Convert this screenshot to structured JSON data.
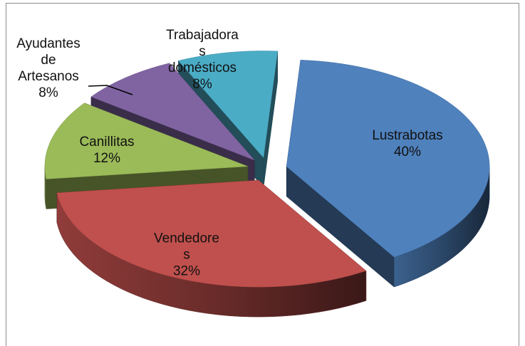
{
  "chart_data": {
    "type": "pie3d",
    "categories": [
      "Lustrabotas",
      "Vendedores",
      "Canillitas",
      "Ayudantes de Artesanos",
      "Trabajadoras domésticos"
    ],
    "values": [
      40,
      32,
      12,
      8,
      8
    ],
    "value_labels": [
      "40%",
      "32%",
      "12%",
      "8%",
      "8%"
    ],
    "colors": [
      "#4f81bd",
      "#c0504d",
      "#9bbb59",
      "#8064a2",
      "#4bacc6"
    ]
  }
}
